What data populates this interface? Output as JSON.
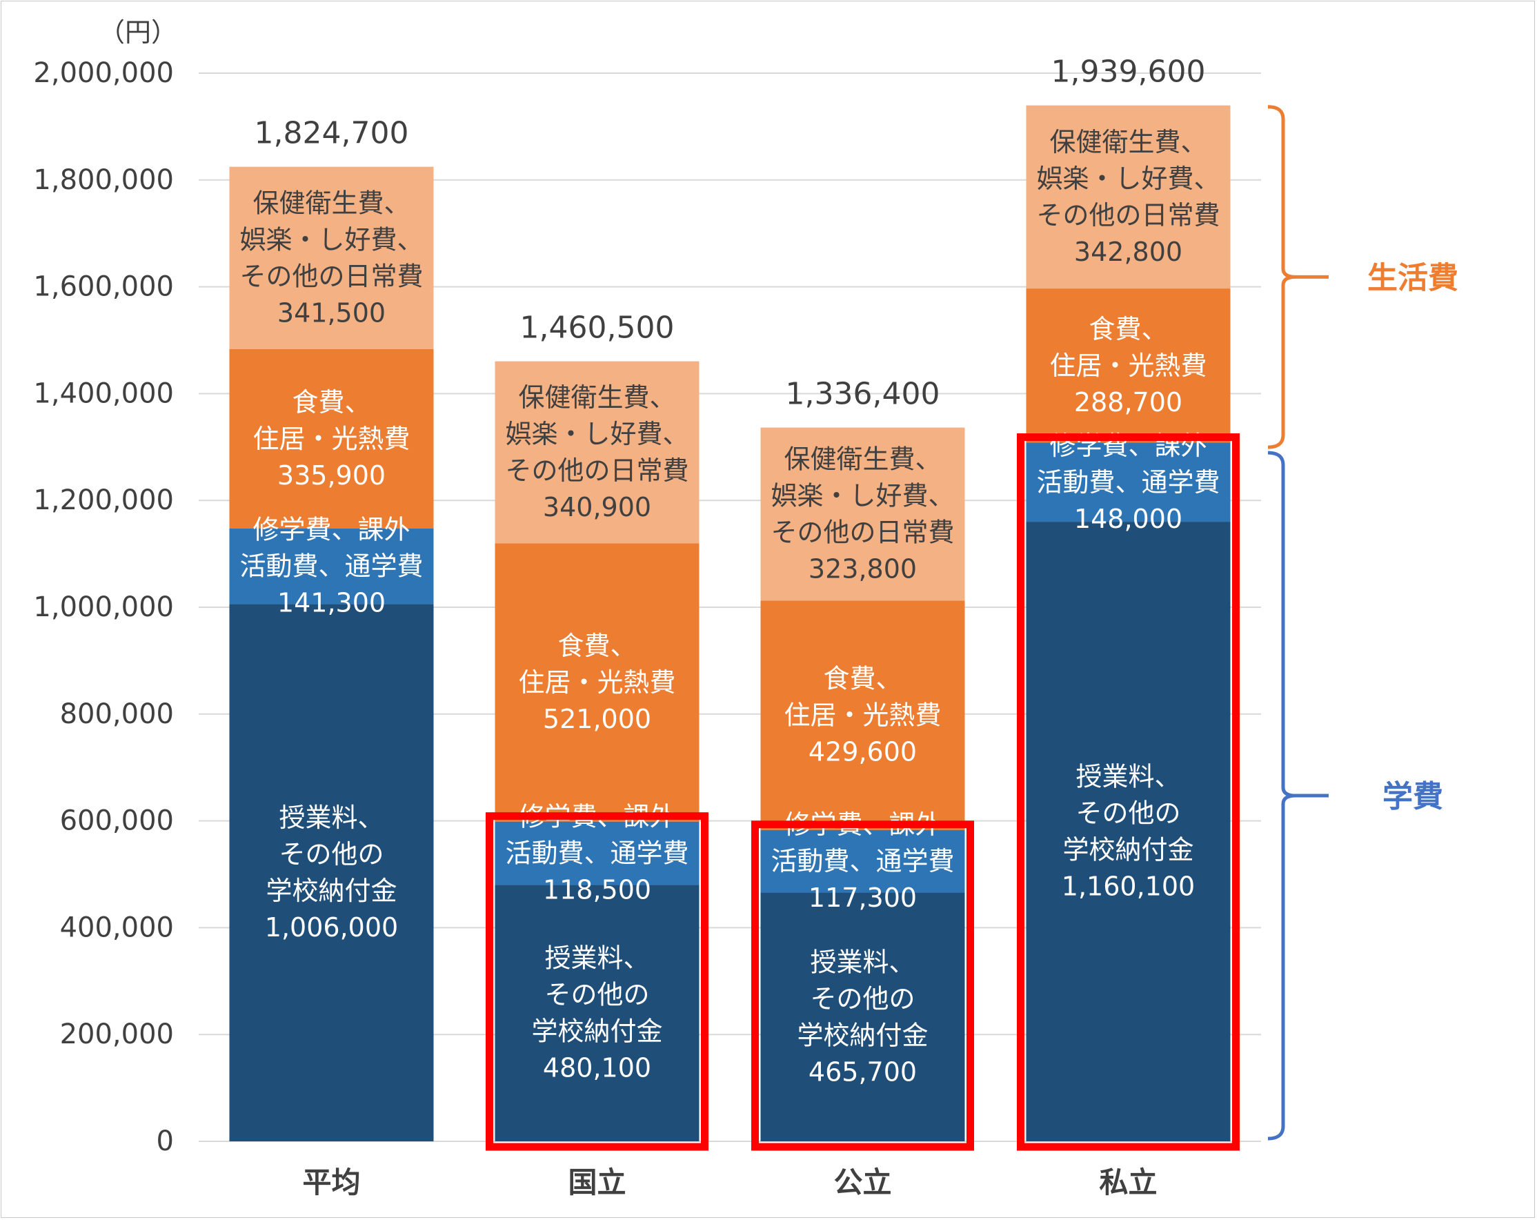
{
  "chart_data": {
    "type": "bar",
    "stacked": true,
    "unit": "（円）",
    "categories": [
      "平均",
      "国立",
      "公立",
      "私立"
    ],
    "ylim": [
      0,
      2000000
    ],
    "yticks": [
      0,
      200000,
      400000,
      600000,
      800000,
      1000000,
      1200000,
      1400000,
      1600000,
      1800000,
      2000000
    ],
    "ytick_labels": [
      "0",
      "200,000",
      "400,000",
      "600,000",
      "800,000",
      "1,000,000",
      "1,200,000",
      "1,400,000",
      "1,600,000",
      "1,800,000",
      "2,000,000"
    ],
    "grid": true,
    "series": [
      {
        "name": "授業料、その他の学校納付金",
        "label_lines": [
          "授業料、",
          "その他の",
          "学校納付金"
        ],
        "color": "#1f4e79",
        "text_color": "#ffffff",
        "values": [
          1006000,
          480100,
          465700,
          1160100
        ],
        "value_labels": [
          "1,006,000",
          "480,100",
          "465,700",
          "1,160,100"
        ]
      },
      {
        "name": "修学費、課外活動費、通学費",
        "label_lines": [
          "修学費、課外",
          "活動費、通学費"
        ],
        "color": "#2e75b6",
        "text_color": "#ffffff",
        "values": [
          141300,
          118500,
          117300,
          148000
        ],
        "value_labels": [
          "141,300",
          "118,500",
          "117,300",
          "148,000"
        ]
      },
      {
        "name": "食費、住居・光熱費",
        "label_lines": [
          "食費、",
          "住居・光熱費"
        ],
        "color": "#ed7d31",
        "text_color": "#ffffff",
        "values": [
          335900,
          521000,
          429600,
          288700
        ],
        "value_labels": [
          "335,900",
          "521,000",
          "429,600",
          "288,700"
        ]
      },
      {
        "name": "保健衛生費、娯楽・し好費、その他の日常費",
        "label_lines": [
          "保健衛生費、",
          "娯楽・し好費、",
          "その他の日常費"
        ],
        "color": "#f4b183",
        "text_color": "#404040",
        "values": [
          341500,
          340900,
          323800,
          342800
        ],
        "value_labels": [
          "341,500",
          "340,900",
          "323,800",
          "342,800"
        ]
      }
    ],
    "totals": [
      1824700,
      1460500,
      1336400,
      1939600
    ],
    "total_labels": [
      "1,824,700",
      "1,460,500",
      "1,336,400",
      "1,939,600"
    ],
    "highlighted_categories": [
      "国立",
      "公立",
      "私立"
    ],
    "highlight_color": "#ff0000",
    "brackets": [
      {
        "label": "生活費",
        "color": "#ed7d31",
        "from": 1297000,
        "to": 1939600
      },
      {
        "label": "学費",
        "color": "#4472c4",
        "from": 0,
        "to": 1297000
      }
    ]
  }
}
